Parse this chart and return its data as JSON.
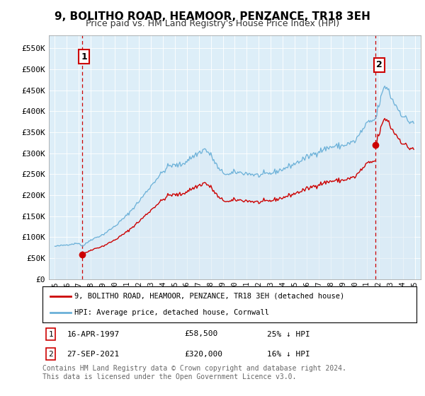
{
  "title": "9, BOLITHO ROAD, HEAMOOR, PENZANCE, TR18 3EH",
  "subtitle": "Price paid vs. HM Land Registry's House Price Index (HPI)",
  "legend_line1": "9, BOLITHO ROAD, HEAMOOR, PENZANCE, TR18 3EH (detached house)",
  "legend_line2": "HPI: Average price, detached house, Cornwall",
  "transaction1_date": "16-APR-1997",
  "transaction1_price": "£58,500",
  "transaction1_hpi": "25% ↓ HPI",
  "transaction2_date": "27-SEP-2021",
  "transaction2_price": "£320,000",
  "transaction2_hpi": "16% ↓ HPI",
  "footnote": "Contains HM Land Registry data © Crown copyright and database right 2024.\nThis data is licensed under the Open Government Licence v3.0.",
  "hpi_color": "#6ab0d8",
  "hpi_fill_color": "#daeaf5",
  "price_color": "#cc0000",
  "dashed_vline_color": "#cc0000",
  "sale1_year": 1997.29,
  "sale1_price": 58500,
  "sale2_year": 2021.74,
  "sale2_price": 320000,
  "ylim_min": 0,
  "ylim_max": 580000,
  "xlim_min": 1994.5,
  "xlim_max": 2025.5,
  "ytick_values": [
    0,
    50000,
    100000,
    150000,
    200000,
    250000,
    300000,
    350000,
    400000,
    450000,
    500000,
    550000
  ],
  "ytick_labels": [
    "£0",
    "£50K",
    "£100K",
    "£150K",
    "£200K",
    "£250K",
    "£300K",
    "£350K",
    "£400K",
    "£450K",
    "£500K",
    "£550K"
  ],
  "xtick_years": [
    1995,
    1996,
    1997,
    1998,
    1999,
    2000,
    2001,
    2002,
    2003,
    2004,
    2005,
    2006,
    2007,
    2008,
    2009,
    2010,
    2011,
    2012,
    2013,
    2014,
    2015,
    2016,
    2017,
    2018,
    2019,
    2020,
    2021,
    2022,
    2023,
    2024,
    2025
  ],
  "background_color": "#ffffff",
  "chart_bg_color": "#ddeef8",
  "grid_color": "#ffffff",
  "title_fontsize": 11,
  "subtitle_fontsize": 9,
  "axis_fontsize": 8,
  "legend_fontsize": 8,
  "table_fontsize": 8,
  "footnote_fontsize": 7
}
